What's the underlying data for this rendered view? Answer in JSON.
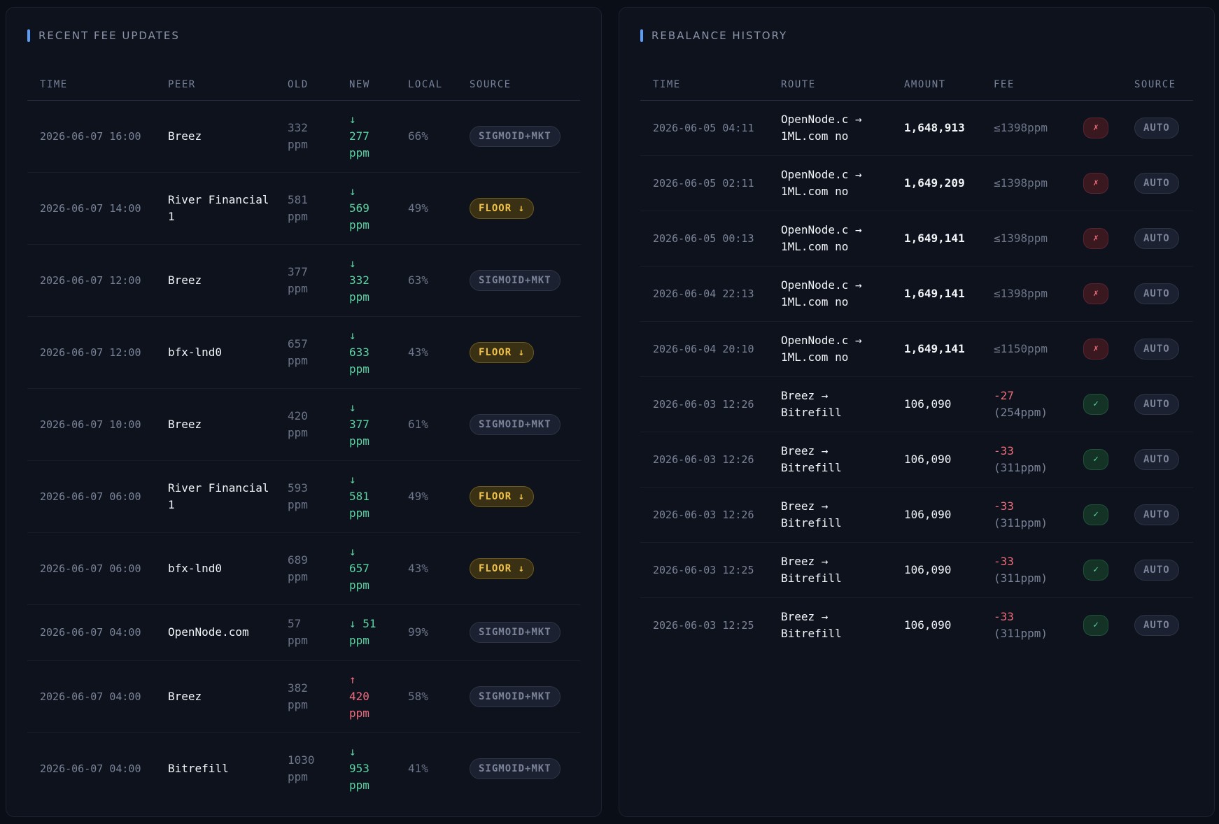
{
  "fee_panel": {
    "title": "RECENT FEE UPDATES",
    "columns": [
      "TIME",
      "PEER",
      "OLD",
      "NEW",
      "LOCAL",
      "SOURCE"
    ],
    "rows": [
      {
        "time": "2026-06-07 16:00",
        "peer": "Breez",
        "old": "332",
        "old_unit": "ppm",
        "dir": "↓",
        "new": "277",
        "new_unit": "ppm",
        "trend": "down",
        "local": "66%",
        "source": "SIGMOID+MKT",
        "source_kind": "sigmoid"
      },
      {
        "time": "2026-06-07 14:00",
        "peer": "River Financial 1",
        "old": "581",
        "old_unit": "ppm",
        "dir": "↓",
        "new": "569",
        "new_unit": "ppm",
        "trend": "down",
        "local": "49%",
        "source": "FLOOR ↓",
        "source_kind": "floor"
      },
      {
        "time": "2026-06-07 12:00",
        "peer": "Breez",
        "old": "377",
        "old_unit": "ppm",
        "dir": "↓",
        "new": "332",
        "new_unit": "ppm",
        "trend": "down",
        "local": "63%",
        "source": "SIGMOID+MKT",
        "source_kind": "sigmoid"
      },
      {
        "time": "2026-06-07 12:00",
        "peer": "bfx-lnd0",
        "old": "657",
        "old_unit": "ppm",
        "dir": "↓",
        "new": "633",
        "new_unit": "ppm",
        "trend": "down",
        "local": "43%",
        "source": "FLOOR ↓",
        "source_kind": "floor"
      },
      {
        "time": "2026-06-07 10:00",
        "peer": "Breez",
        "old": "420",
        "old_unit": "ppm",
        "dir": "↓",
        "new": "377",
        "new_unit": "ppm",
        "trend": "down",
        "local": "61%",
        "source": "SIGMOID+MKT",
        "source_kind": "sigmoid"
      },
      {
        "time": "2026-06-07 06:00",
        "peer": "River Financial 1",
        "old": "593",
        "old_unit": "ppm",
        "dir": "↓",
        "new": "581",
        "new_unit": "ppm",
        "trend": "down",
        "local": "49%",
        "source": "FLOOR ↓",
        "source_kind": "floor"
      },
      {
        "time": "2026-06-07 06:00",
        "peer": "bfx-lnd0",
        "old": "689",
        "old_unit": "ppm",
        "dir": "↓",
        "new": "657",
        "new_unit": "ppm",
        "trend": "down",
        "local": "43%",
        "source": "FLOOR ↓",
        "source_kind": "floor"
      },
      {
        "time": "2026-06-07 04:00",
        "peer": "OpenNode.com",
        "old": "57",
        "old_unit": "ppm",
        "dir": "↓",
        "new": "51",
        "new_unit": "ppm",
        "trend": "down",
        "local": "99%",
        "source": "SIGMOID+MKT",
        "source_kind": "sigmoid",
        "inline": true
      },
      {
        "time": "2026-06-07 04:00",
        "peer": "Breez",
        "old": "382",
        "old_unit": "ppm",
        "dir": "↑",
        "new": "420",
        "new_unit": "ppm",
        "trend": "up",
        "local": "58%",
        "source": "SIGMOID+MKT",
        "source_kind": "sigmoid"
      },
      {
        "time": "2026-06-07 04:00",
        "peer": "Bitrefill",
        "old": "1030",
        "old_unit": "ppm",
        "dir": "↓",
        "new": "953",
        "new_unit": "ppm",
        "trend": "down",
        "local": "41%",
        "source": "SIGMOID+MKT",
        "source_kind": "sigmoid"
      }
    ]
  },
  "rebalance_panel": {
    "title": "REBALANCE HISTORY",
    "columns": [
      "TIME",
      "ROUTE",
      "AMOUNT",
      "FEE",
      "",
      "SOURCE"
    ],
    "rows": [
      {
        "time": "2026-06-05 04:11",
        "route_line1": "OpenNode.c →",
        "route_line2": "1ML.com no",
        "amount": "1,648,913",
        "fee": "≤1398ppm",
        "fee_sub": "",
        "fee_kind": "est",
        "status": "fail",
        "status_icon": "✗",
        "source": "AUTO"
      },
      {
        "time": "2026-06-05 02:11",
        "route_line1": "OpenNode.c →",
        "route_line2": "1ML.com no",
        "amount": "1,649,209",
        "fee": "≤1398ppm",
        "fee_sub": "",
        "fee_kind": "est",
        "status": "fail",
        "status_icon": "✗",
        "source": "AUTO"
      },
      {
        "time": "2026-06-05 00:13",
        "route_line1": "OpenNode.c →",
        "route_line2": "1ML.com no",
        "amount": "1,649,141",
        "fee": "≤1398ppm",
        "fee_sub": "",
        "fee_kind": "est",
        "status": "fail",
        "status_icon": "✗",
        "source": "AUTO"
      },
      {
        "time": "2026-06-04 22:13",
        "route_line1": "OpenNode.c →",
        "route_line2": "1ML.com no",
        "amount": "1,649,141",
        "fee": "≤1398ppm",
        "fee_sub": "",
        "fee_kind": "est",
        "status": "fail",
        "status_icon": "✗",
        "source": "AUTO"
      },
      {
        "time": "2026-06-04 20:10",
        "route_line1": "OpenNode.c →",
        "route_line2": "1ML.com no",
        "amount": "1,649,141",
        "fee": "≤1150ppm",
        "fee_sub": "",
        "fee_kind": "est",
        "status": "fail",
        "status_icon": "✗",
        "source": "AUTO"
      },
      {
        "time": "2026-06-03 12:26",
        "route_line1": "Breez →",
        "route_line2": "Bitrefill",
        "amount": "106,090",
        "fee": "-27",
        "fee_sub": "(254ppm)",
        "fee_kind": "paid",
        "status": "ok",
        "status_icon": "✓",
        "source": "AUTO"
      },
      {
        "time": "2026-06-03 12:26",
        "route_line1": "Breez →",
        "route_line2": "Bitrefill",
        "amount": "106,090",
        "fee": "-33",
        "fee_sub": "(311ppm)",
        "fee_kind": "paid",
        "status": "ok",
        "status_icon": "✓",
        "source": "AUTO"
      },
      {
        "time": "2026-06-03 12:26",
        "route_line1": "Breez →",
        "route_line2": "Bitrefill",
        "amount": "106,090",
        "fee": "-33",
        "fee_sub": "(311ppm)",
        "fee_kind": "paid",
        "status": "ok",
        "status_icon": "✓",
        "source": "AUTO"
      },
      {
        "time": "2026-06-03 12:25",
        "route_line1": "Breez →",
        "route_line2": "Bitrefill",
        "amount": "106,090",
        "fee": "-33",
        "fee_sub": "(311ppm)",
        "fee_kind": "paid",
        "status": "ok",
        "status_icon": "✓",
        "source": "AUTO"
      },
      {
        "time": "2026-06-03 12:25",
        "route_line1": "Breez →",
        "route_line2": "Bitrefill",
        "amount": "106,090",
        "fee": "-33",
        "fee_sub": "(311ppm)",
        "fee_kind": "paid",
        "status": "ok",
        "status_icon": "✓",
        "source": "AUTO"
      }
    ]
  },
  "colors": {
    "background": "#0a0e16",
    "panel": "#0d121c",
    "accent": "#5b9cf5",
    "decrease": "#5bd3a2",
    "increase": "#f06c7c",
    "floor_badge": "#f0c24a"
  }
}
